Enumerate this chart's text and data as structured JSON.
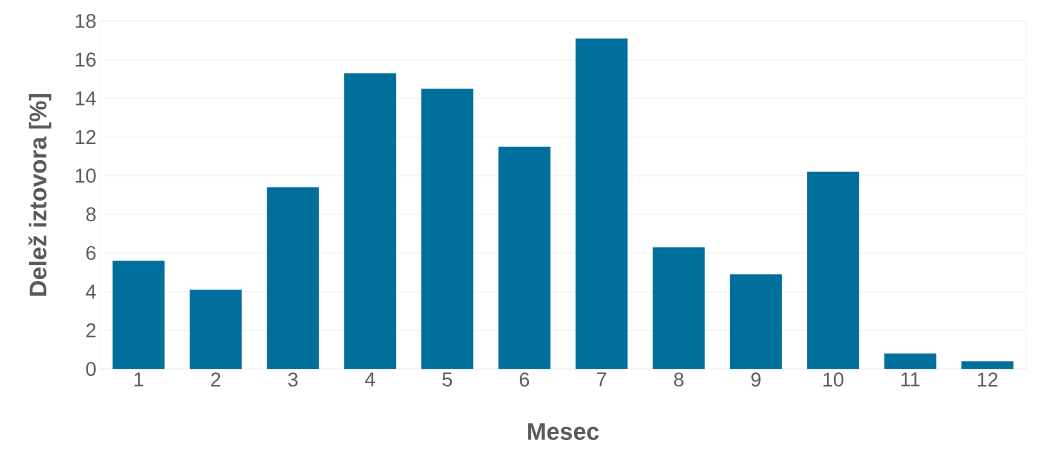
{
  "chart_data": {
    "type": "bar",
    "xlabel": "Mesec",
    "ylabel": "Delež iztovora [%]",
    "categories": [
      "1",
      "2",
      "3",
      "4",
      "5",
      "6",
      "7",
      "8",
      "9",
      "10",
      "11",
      "12"
    ],
    "values": [
      5.6,
      4.1,
      9.4,
      15.3,
      14.5,
      11.5,
      17.1,
      6.3,
      4.9,
      10.2,
      0.8,
      0.4
    ],
    "color": "#006f9b",
    "ylim": [
      0,
      18
    ],
    "yticks": [
      0,
      2,
      4,
      6,
      8,
      10,
      12,
      14,
      16,
      18
    ],
    "grid": "y"
  }
}
